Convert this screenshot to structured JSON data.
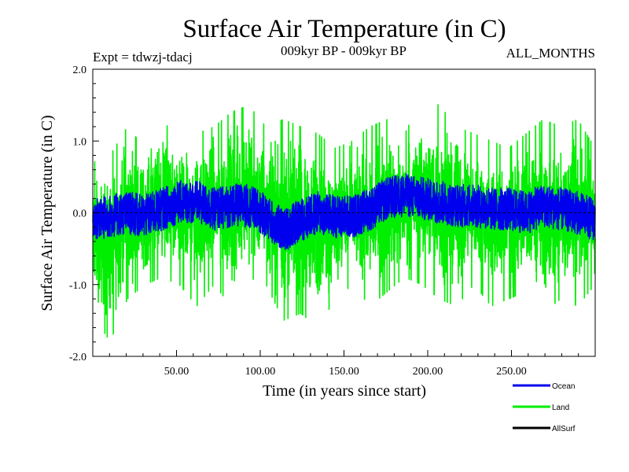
{
  "chart_data": {
    "type": "line",
    "title": "Surface Air Temperature (in C)",
    "subtitle_left": "Expt = tdwzj-tdacj",
    "subtitle_center": "009kyr BP - 009kyr BP",
    "subtitle_right": "ALL_MONTHS",
    "xlabel": "Time (in years since start)",
    "ylabel": "Surface Air Temperature (in C)",
    "xlim": [
      0,
      300
    ],
    "ylim": [
      -2.0,
      2.0
    ],
    "x_ticks": [
      50,
      100,
      150,
      200,
      250
    ],
    "x_tick_labels": [
      "50.00",
      "100.00",
      "150.00",
      "200.00",
      "250.00"
    ],
    "y_ticks": [
      -2.0,
      -1.0,
      0.0,
      1.0,
      2.0
    ],
    "y_tick_labels": [
      "-2.0",
      "-1.0",
      "0.0",
      "1.0",
      "2.0"
    ],
    "zero_line": true,
    "grid": false,
    "legend_position": "bottom-right",
    "samples_per_year": 12,
    "series": [
      {
        "name": "Land",
        "color": "#00ee00",
        "envelope_max": [
          0.7,
          0.8,
          1.2,
          0.9,
          1.3,
          1.0,
          1.1,
          1.2,
          1.4,
          1.5,
          1.2,
          1.3,
          1.2,
          1.1,
          0.9,
          1.0,
          1.2,
          1.3,
          1.1,
          1.6,
          1.5,
          1.2,
          1.1,
          1.0,
          0.9,
          1.1,
          1.3,
          1.2,
          1.3,
          0.9
        ],
        "envelope_min": [
          -1.4,
          -1.8,
          -1.2,
          -1.0,
          -0.9,
          -1.0,
          -1.3,
          -1.0,
          -1.3,
          -0.9,
          -1.0,
          -1.5,
          -1.4,
          -1.6,
          -1.2,
          -1.0,
          -1.3,
          -1.1,
          -0.9,
          -1.0,
          -1.2,
          -1.3,
          -1.0,
          -1.3,
          -1.2,
          -1.1,
          -1.4,
          -1.2,
          -1.3,
          -1.0
        ]
      },
      {
        "name": "Ocean",
        "color": "#0000ee",
        "values": [
          -0.1,
          -0.05,
          0.0,
          -0.05,
          0.05,
          0.15,
          0.15,
          0.05,
          0.1,
          0.1,
          -0.05,
          -0.25,
          -0.1,
          0.0,
          -0.05,
          -0.05,
          0.05,
          0.2,
          0.25,
          0.2,
          0.15,
          0.1,
          0.1,
          0.05,
          0.05,
          0.0,
          0.1,
          0.05,
          0.0,
          -0.1
        ],
        "amplitude": 0.3
      },
      {
        "name": "AllSurf",
        "color": "#000000"
      }
    ]
  }
}
